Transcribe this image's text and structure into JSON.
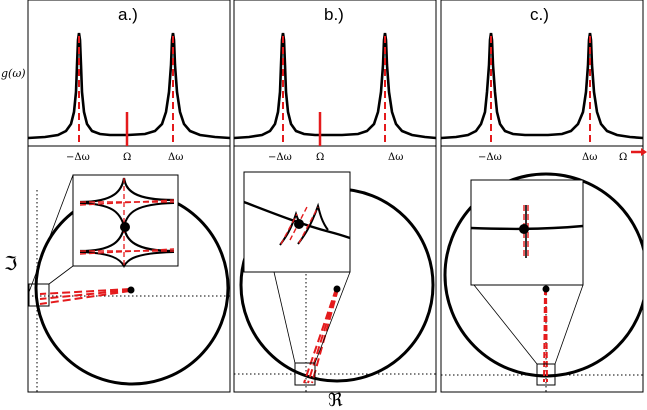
{
  "panel_titles": [
    "a.)",
    "b.)",
    "c.)"
  ],
  "y_axis_label_top": "g(ω)",
  "tick_labels": {
    "a": [
      "−Δω",
      "Ω",
      "Δω"
    ],
    "b": [
      "−Δω",
      "Ω",
      "Δω"
    ],
    "c": [
      "−Δω",
      "Δω",
      "Ω"
    ]
  },
  "imag_axis_label": "ℑ",
  "real_axis_label": "ℜ",
  "colors": {
    "curve": "#000000",
    "drive": "#e41a1c"
  }
}
